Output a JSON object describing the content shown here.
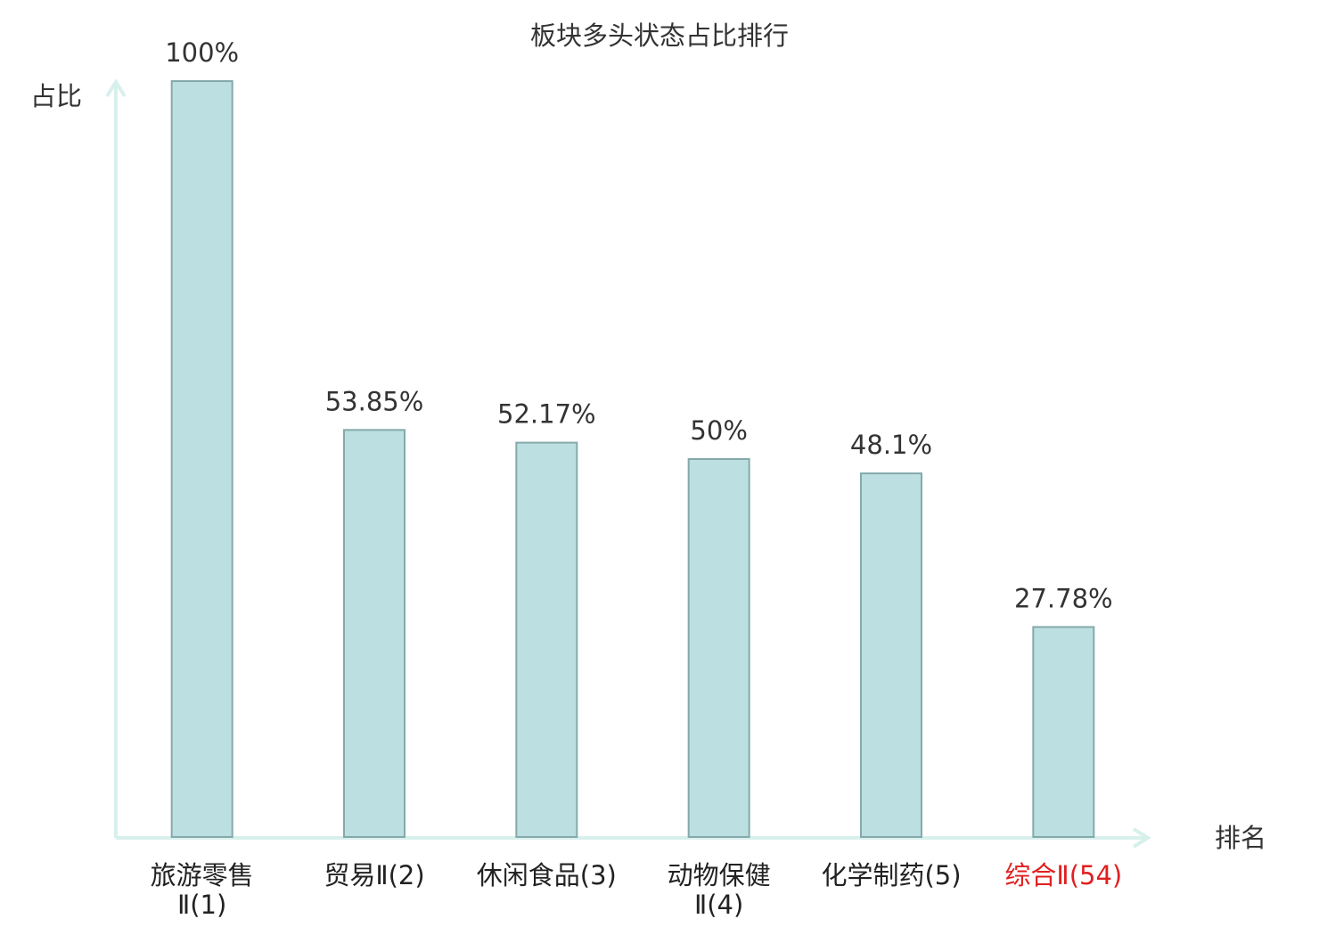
{
  "chart_data": {
    "type": "bar",
    "title": "板块多头状态占比排行",
    "y_label": "占比",
    "x_label": "排名",
    "categories": [
      "旅游零售\nⅡ(1)",
      "贸易Ⅱ(2)",
      "休闲食品(3)",
      "动物保健\nⅡ(4)",
      "化学制药(5)",
      "综合Ⅱ(54)"
    ],
    "label_colors": [
      "#222222",
      "#222222",
      "#222222",
      "#222222",
      "#222222",
      "#e02020"
    ],
    "values": [
      100,
      53.85,
      52.17,
      50,
      48.1,
      27.78
    ],
    "value_labels": [
      "100%",
      "53.85%",
      "52.17%",
      "50%",
      "48.1%",
      "27.78%"
    ],
    "color": "#bce0e2",
    "edge_color": "#85a9ab",
    "ylim": [
      0,
      100
    ]
  }
}
